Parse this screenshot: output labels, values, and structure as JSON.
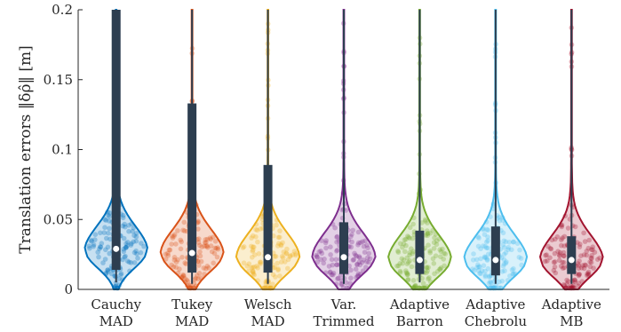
{
  "chart_data": {
    "type": "violin",
    "ylabel": "Translation errors ‖δρ̂‖ [m]",
    "ylim": [
      0,
      0.2
    ],
    "yticks": [
      0,
      0.05,
      0.1,
      0.15,
      0.2
    ],
    "ytick_labels": [
      "0",
      "0.05",
      "0.1",
      "0.15",
      "0.2"
    ],
    "grid": false,
    "categories": [
      {
        "line1": "Cauchy",
        "line2": "MAD",
        "color": "#0072BD",
        "median": 0.029,
        "q1": 0.014,
        "q3": 0.2,
        "whisker_low": 0.005,
        "whisker_high": 0.2
      },
      {
        "line1": "Tukey",
        "line2": "MAD",
        "color": "#D95319",
        "median": 0.026,
        "q1": 0.012,
        "q3": 0.133,
        "whisker_low": 0.004,
        "whisker_high": 0.2
      },
      {
        "line1": "Welsch",
        "line2": "MAD",
        "color": "#EDB120",
        "median": 0.023,
        "q1": 0.012,
        "q3": 0.089,
        "whisker_low": 0.004,
        "whisker_high": 0.2
      },
      {
        "line1": "Var.",
        "line2": "Trimmed",
        "color": "#7E2F8E",
        "median": 0.023,
        "q1": 0.011,
        "q3": 0.048,
        "whisker_low": 0.004,
        "whisker_high": 0.2
      },
      {
        "line1": "Adaptive",
        "line2": "Barron",
        "color": "#77AC30",
        "median": 0.021,
        "q1": 0.011,
        "q3": 0.042,
        "whisker_low": 0.005,
        "whisker_high": 0.2
      },
      {
        "line1": "Adaptive",
        "line2": "Chebrolu",
        "color": "#4DBEEE",
        "median": 0.021,
        "q1": 0.01,
        "q3": 0.045,
        "whisker_low": 0.004,
        "whisker_high": 0.2
      },
      {
        "line1": "Adaptive",
        "line2": "MB",
        "color": "#A2142F",
        "median": 0.021,
        "q1": 0.011,
        "q3": 0.038,
        "whisker_low": 0.004,
        "whisker_high": 0.2
      }
    ]
  }
}
